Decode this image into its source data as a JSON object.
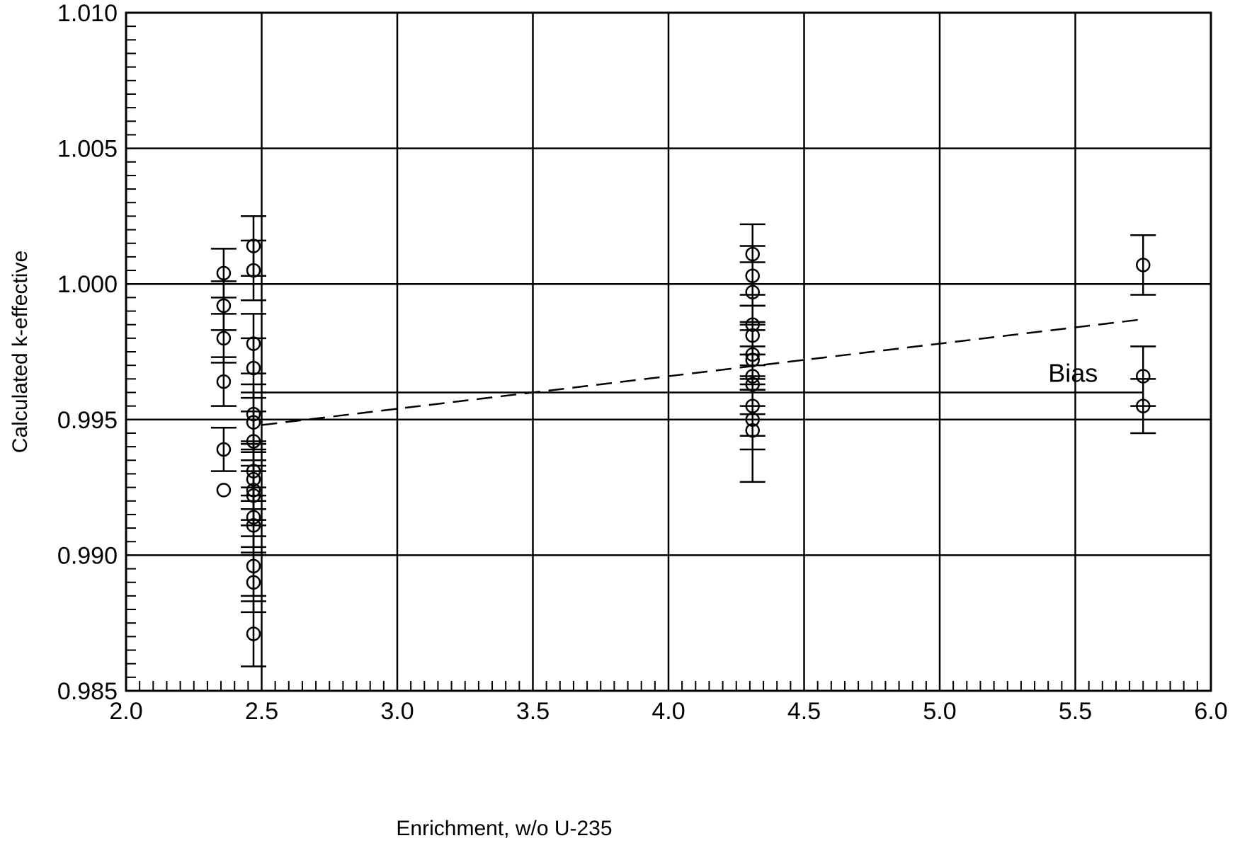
{
  "chart_data": {
    "type": "scatter",
    "xlabel": "Enrichment, w/o  U-235",
    "ylabel": "Calculated k-effective",
    "xlim": [
      2.0,
      6.0
    ],
    "ylim": [
      0.985,
      1.01
    ],
    "x_ticks": [
      "2.0",
      "2.5",
      "3.0",
      "3.5",
      "4.0",
      "4.5",
      "5.0",
      "5.5",
      "6.0"
    ],
    "y_ticks": [
      "0.985",
      "0.990",
      "0.995",
      "1.000",
      "1.005",
      "1.010"
    ],
    "grid": true,
    "points": [
      {
        "x": 2.36,
        "y": 1.0004,
        "err": 0.0009
      },
      {
        "x": 2.36,
        "y": 0.9992,
        "err": 0.0009
      },
      {
        "x": 2.36,
        "y": 0.998,
        "err": 0.0009
      },
      {
        "x": 2.36,
        "y": 0.9964,
        "err": 0.0009
      },
      {
        "x": 2.36,
        "y": 0.9939,
        "err": 0.0008
      },
      {
        "x": 2.36,
        "y": 0.9924,
        "err": 0.0
      },
      {
        "x": 2.47,
        "y": 1.0014,
        "err": 0.0011
      },
      {
        "x": 2.47,
        "y": 1.0005,
        "err": 0.0011
      },
      {
        "x": 2.47,
        "y": 0.9978,
        "err": 0.0011
      },
      {
        "x": 2.47,
        "y": 0.9969,
        "err": 0.0011
      },
      {
        "x": 2.47,
        "y": 0.9952,
        "err": 0.0011
      },
      {
        "x": 2.47,
        "y": 0.9949,
        "err": 0.0011
      },
      {
        "x": 2.47,
        "y": 0.9942,
        "err": 0.0011
      },
      {
        "x": 2.47,
        "y": 0.9931,
        "err": 0.0011
      },
      {
        "x": 2.47,
        "y": 0.9928,
        "err": 0.0011
      },
      {
        "x": 2.47,
        "y": 0.9924,
        "err": 0.0011
      },
      {
        "x": 2.47,
        "y": 0.9922,
        "err": 0.0011
      },
      {
        "x": 2.47,
        "y": 0.9914,
        "err": 0.0011
      },
      {
        "x": 2.47,
        "y": 0.9911,
        "err": 0.0011
      },
      {
        "x": 2.47,
        "y": 0.9896,
        "err": 0.0011
      },
      {
        "x": 2.47,
        "y": 0.989,
        "err": 0.0011
      },
      {
        "x": 2.47,
        "y": 0.9871,
        "err": 0.0012
      },
      {
        "x": 4.31,
        "y": 1.0011,
        "err": 0.0011
      },
      {
        "x": 4.31,
        "y": 1.0003,
        "err": 0.0011
      },
      {
        "x": 4.31,
        "y": 0.9997,
        "err": 0.0011
      },
      {
        "x": 4.31,
        "y": 0.9985,
        "err": 0.0011
      },
      {
        "x": 4.31,
        "y": 0.9981,
        "err": 0.0011
      },
      {
        "x": 4.31,
        "y": 0.9974,
        "err": 0.0011
      },
      {
        "x": 4.31,
        "y": 0.9972,
        "err": 0.0011
      },
      {
        "x": 4.31,
        "y": 0.9966,
        "err": 0.0011
      },
      {
        "x": 4.31,
        "y": 0.9963,
        "err": 0.0011
      },
      {
        "x": 4.31,
        "y": 0.9955,
        "err": 0.0011
      },
      {
        "x": 4.31,
        "y": 0.995,
        "err": 0.0011
      },
      {
        "x": 4.31,
        "y": 0.9946,
        "err": 0.0019
      },
      {
        "x": 5.75,
        "y": 1.0007,
        "err": 0.0011
      },
      {
        "x": 5.75,
        "y": 0.9966,
        "err": 0.0011
      },
      {
        "x": 5.75,
        "y": 0.9955,
        "err": 0.001
      }
    ],
    "trend_line": {
      "style": "dashed",
      "x": [
        2.5,
        5.75
      ],
      "y": [
        0.9948,
        0.9987
      ]
    },
    "bias_line": {
      "y": 0.996,
      "x_start": 2.5,
      "x_end": 5.75
    },
    "annotations": [
      {
        "text": "Bias",
        "x": 5.4,
        "y": 0.9967
      }
    ]
  }
}
